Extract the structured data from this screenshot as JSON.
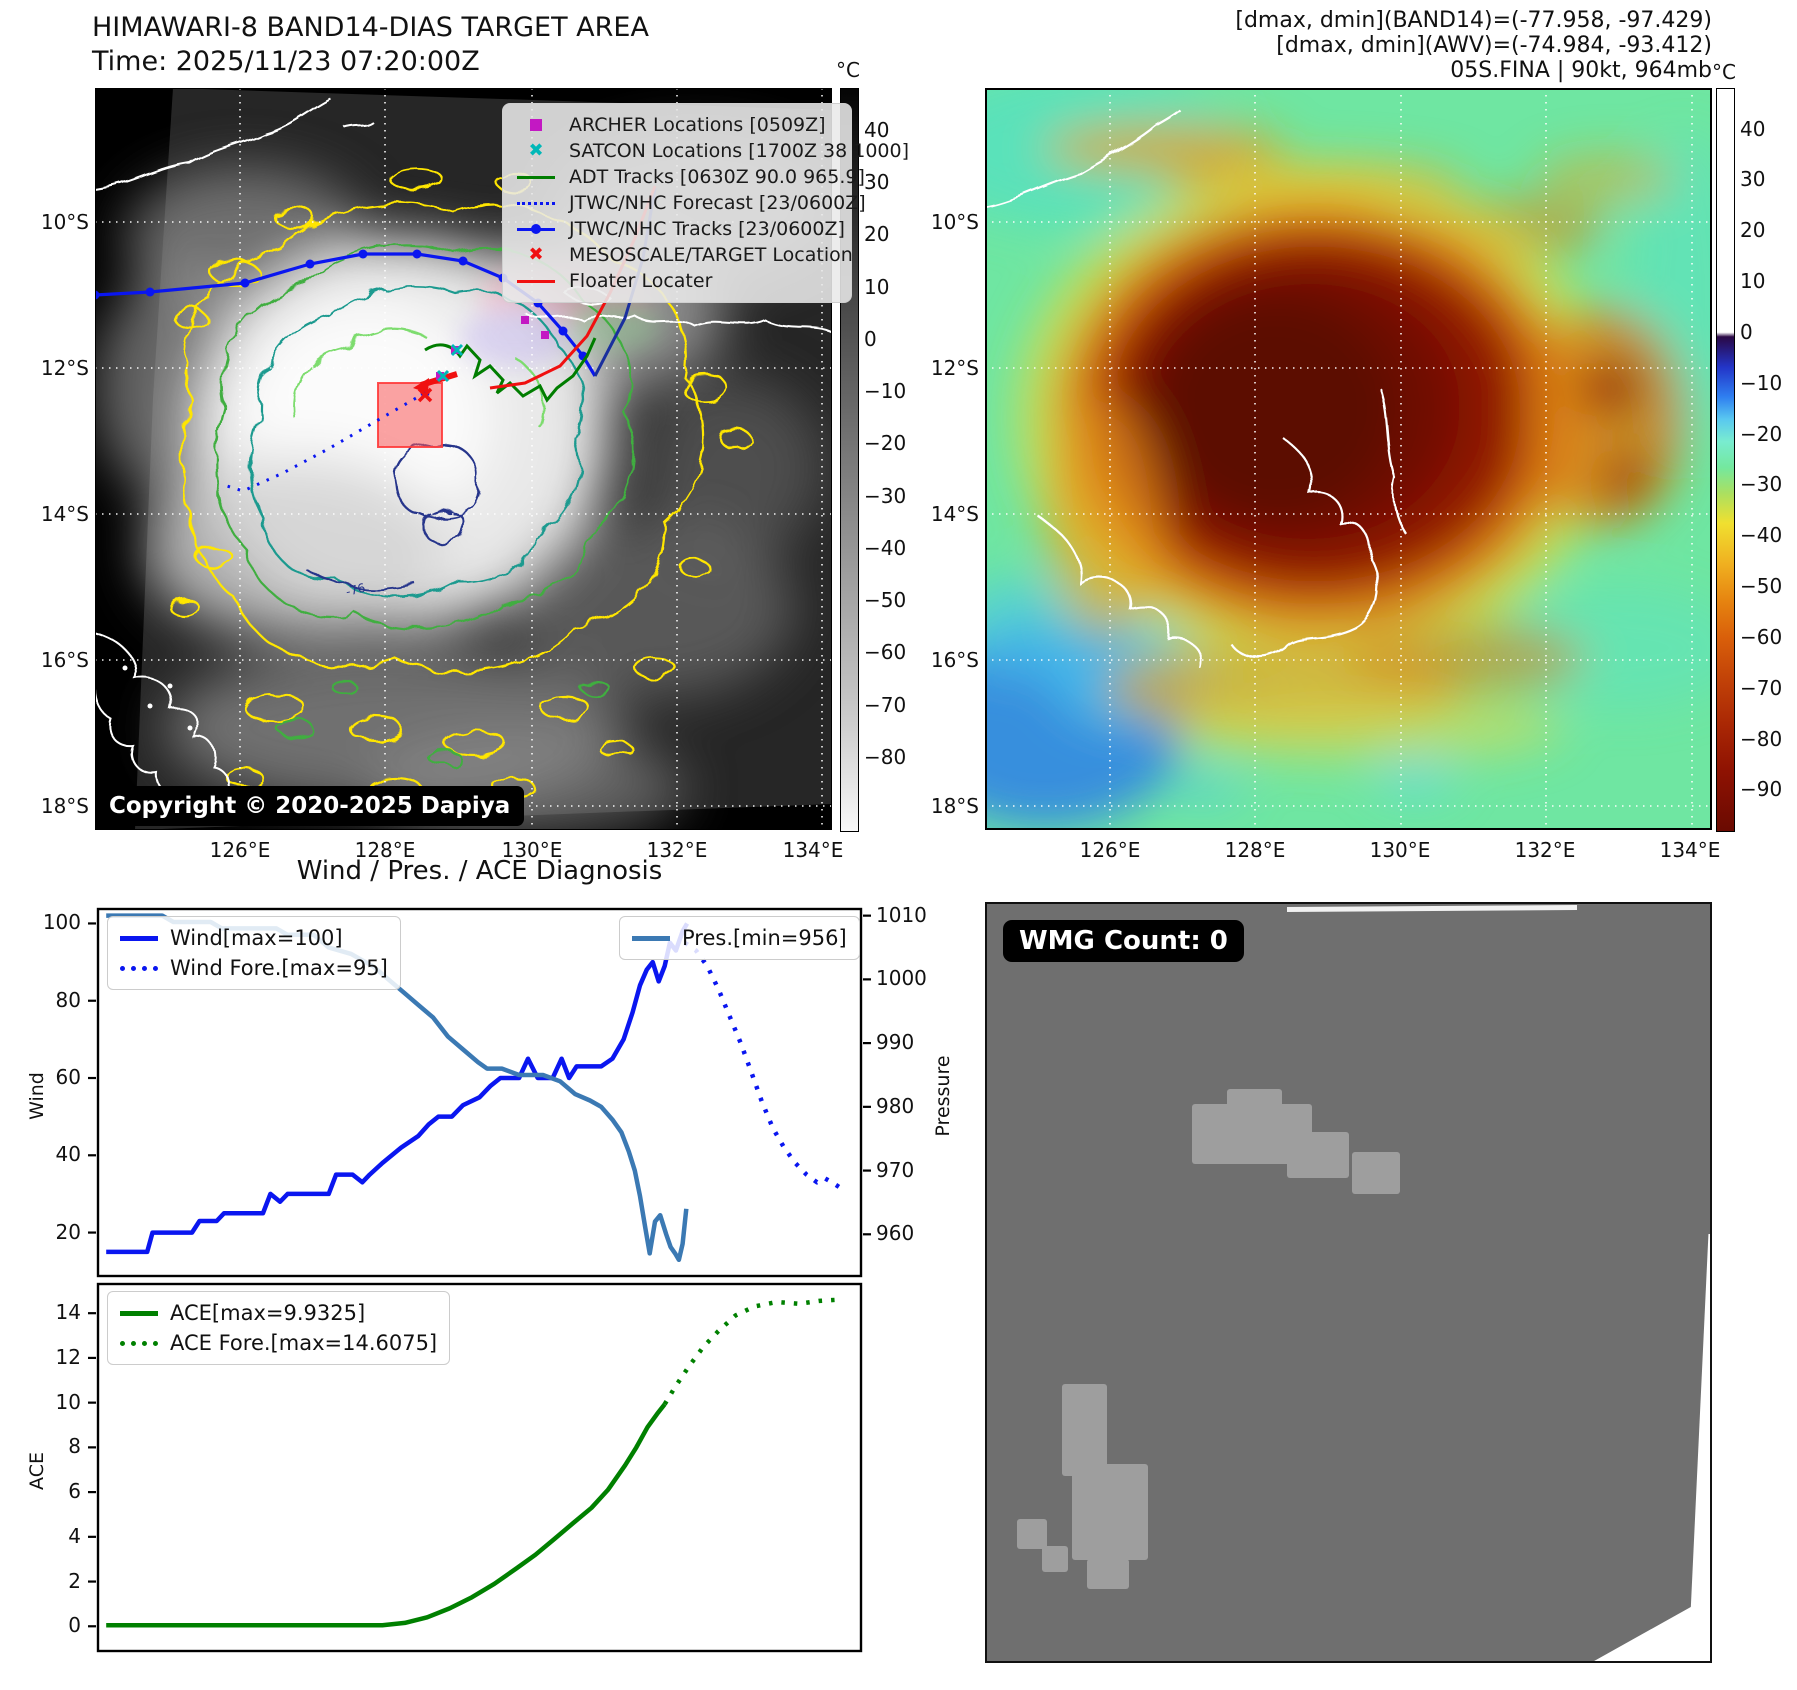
{
  "header": {
    "title": "HIMAWARI-8 BAND14-DIAS TARGET AREA",
    "time_line": "Time: 2025/11/23 07:20:00Z",
    "info_line1": "[dmax, dmin](BAND14)=(-77.958, -97.429)",
    "info_line2": "[dmax, dmin](AWV)=(-74.984, -93.412)",
    "info_line3": "05S.FINA | 90kt, 964mb"
  },
  "left_map": {
    "legend_items": [
      {
        "label": "ARCHER Locations [0509Z]",
        "marker": "square",
        "color": "#c318c3"
      },
      {
        "label": "SATCON Locations [1700Z 38 1000]",
        "marker": "x",
        "color": "#00b8b8"
      },
      {
        "label": "ADT Tracks [0630Z 90.0 965.9]",
        "marker": "line",
        "color": "#007d00"
      },
      {
        "label": "JTWC/NHC Forecast [23/0600Z]",
        "marker": "dotted-line",
        "color": "#0a16f0"
      },
      {
        "label": "JTWC/NHC Tracks [23/0600Z]",
        "marker": "line-dot",
        "color": "#0a16f0"
      },
      {
        "label": "MESOSCALE/TARGET Location",
        "marker": "x",
        "color": "#f01010"
      },
      {
        "label": "Floater Locater",
        "marker": "line",
        "color": "#f01010"
      }
    ],
    "copyright": "Copyright © 2020-2025 Dapiya",
    "contour_annotation": "-76",
    "lat_ticks": [
      "10°S",
      "12°S",
      "14°S",
      "16°S",
      "18°S"
    ],
    "lon_ticks": [
      "126°E",
      "128°E",
      "130°E",
      "132°E",
      "134°E"
    ],
    "colorbar": {
      "unit": "°C",
      "ticks": [
        "40",
        "30",
        "20",
        "10",
        "0",
        "−10",
        "−20",
        "−30",
        "−40",
        "−50",
        "−60",
        "−70",
        "−80"
      ]
    }
  },
  "right_map": {
    "lat_ticks": [
      "10°S",
      "12°S",
      "14°S",
      "16°S",
      "18°S"
    ],
    "lon_ticks": [
      "126°E",
      "128°E",
      "130°E",
      "132°E",
      "134°E"
    ],
    "colorbar": {
      "unit": "°C",
      "ticks": [
        "40",
        "30",
        "20",
        "10",
        "0",
        "−10",
        "−20",
        "−30",
        "−40",
        "−50",
        "−60",
        "−70",
        "−80",
        "−90"
      ]
    }
  },
  "wmg_panel": {
    "count_label": "WMG Count: 0"
  },
  "chart_data": [
    {
      "type": "line",
      "title": "Wind / Pres. / ACE Diagnosis",
      "ylabel_left": "Wind",
      "ylabel_right": "Pressure",
      "ylim_left": [
        8.5,
        104
      ],
      "yticks_left": [
        20,
        40,
        60,
        80,
        100
      ],
      "ylim_right": [
        953.3,
        1011.2
      ],
      "yticks_right": [
        960,
        970,
        980,
        990,
        1000,
        1010
      ],
      "x_range": [
        0,
        1
      ],
      "series": [
        {
          "name": "Wind[max=100]",
          "axis": "left",
          "style": "solid",
          "color": "#0a16f0",
          "points": [
            [
              0,
              15
            ],
            [
              0.055,
              15
            ],
            [
              0.062,
              20
            ],
            [
              0.115,
              20
            ],
            [
              0.125,
              23
            ],
            [
              0.148,
              23
            ],
            [
              0.158,
              25
            ],
            [
              0.21,
              25
            ],
            [
              0.22,
              30
            ],
            [
              0.233,
              28
            ],
            [
              0.243,
              30
            ],
            [
              0.298,
              30
            ],
            [
              0.308,
              35
            ],
            [
              0.33,
              35
            ],
            [
              0.343,
              33
            ],
            [
              0.353,
              35
            ],
            [
              0.37,
              38
            ],
            [
              0.395,
              42
            ],
            [
              0.418,
              45
            ],
            [
              0.432,
              48
            ],
            [
              0.445,
              50
            ],
            [
              0.463,
              50
            ],
            [
              0.478,
              53
            ],
            [
              0.5,
              55
            ],
            [
              0.515,
              58
            ],
            [
              0.528,
              60
            ],
            [
              0.553,
              60
            ],
            [
              0.565,
              65
            ],
            [
              0.578,
              60
            ],
            [
              0.598,
              60
            ],
            [
              0.61,
              65
            ],
            [
              0.62,
              60
            ],
            [
              0.63,
              63
            ],
            [
              0.663,
              63
            ],
            [
              0.678,
              65
            ],
            [
              0.693,
              70
            ],
            [
              0.705,
              77
            ],
            [
              0.715,
              84
            ],
            [
              0.724,
              88
            ],
            [
              0.732,
              90
            ],
            [
              0.74,
              85
            ],
            [
              0.748,
              89
            ],
            [
              0.755,
              95
            ],
            [
              0.763,
              93
            ],
            [
              0.772,
              98
            ],
            [
              0.778,
              100
            ]
          ]
        },
        {
          "name": "Wind Fore.[max=95]",
          "axis": "left",
          "style": "dotted",
          "color": "#0a16f0",
          "points": [
            [
              0.775,
              95
            ],
            [
              0.79,
              93
            ],
            [
              0.805,
              89
            ],
            [
              0.82,
              83
            ],
            [
              0.835,
              76
            ],
            [
              0.85,
              69
            ],
            [
              0.865,
              61
            ],
            [
              0.878,
              54
            ],
            [
              0.893,
              47
            ],
            [
              0.908,
              42
            ],
            [
              0.923,
              38
            ],
            [
              0.938,
              35
            ],
            [
              0.952,
              33
            ],
            [
              0.963,
              34
            ],
            [
              0.972,
              33
            ],
            [
              0.988,
              31
            ]
          ]
        },
        {
          "name": "Pres.[min=956]",
          "axis": "right",
          "style": "solid",
          "color": "#3b79b3",
          "points": [
            [
              0,
              1010
            ],
            [
              0.075,
              1010
            ],
            [
              0.09,
              1009
            ],
            [
              0.14,
              1009
            ],
            [
              0.155,
              1008
            ],
            [
              0.228,
              1008
            ],
            [
              0.243,
              1007
            ],
            [
              0.278,
              1007
            ],
            [
              0.298,
              1005
            ],
            [
              0.328,
              1004
            ],
            [
              0.343,
              1003
            ],
            [
              0.358,
              1002
            ],
            [
              0.378,
              1000
            ],
            [
              0.398,
              998
            ],
            [
              0.418,
              996
            ],
            [
              0.438,
              994
            ],
            [
              0.458,
              991
            ],
            [
              0.478,
              989
            ],
            [
              0.498,
              987
            ],
            [
              0.51,
              986
            ],
            [
              0.53,
              986
            ],
            [
              0.553,
              985
            ],
            [
              0.585,
              985
            ],
            [
              0.608,
              984
            ],
            [
              0.628,
              982
            ],
            [
              0.648,
              981
            ],
            [
              0.663,
              980
            ],
            [
              0.678,
              978
            ],
            [
              0.69,
              976
            ],
            [
              0.7,
              973
            ],
            [
              0.708,
              970
            ],
            [
              0.715,
              966
            ],
            [
              0.722,
              961
            ],
            [
              0.728,
              957
            ],
            [
              0.735,
              962
            ],
            [
              0.742,
              963
            ],
            [
              0.75,
              960
            ],
            [
              0.756,
              958
            ],
            [
              0.762,
              957
            ],
            [
              0.767,
              956
            ],
            [
              0.772,
              958.5
            ],
            [
              0.777,
              964
            ]
          ]
        }
      ]
    },
    {
      "type": "line",
      "ylabel_left": "ACE",
      "ylim_left": [
        -1.15,
        15.35
      ],
      "yticks_left": [
        0,
        2,
        4,
        6,
        8,
        10,
        12,
        14
      ],
      "x_range": [
        0,
        1
      ],
      "series": [
        {
          "name": "ACE[max=9.9325]",
          "axis": "left",
          "style": "solid",
          "color": "#008000",
          "points": [
            [
              0,
              0.05
            ],
            [
              0.37,
              0.05
            ],
            [
              0.4,
              0.15
            ],
            [
              0.43,
              0.4
            ],
            [
              0.46,
              0.8
            ],
            [
              0.49,
              1.3
            ],
            [
              0.52,
              1.9
            ],
            [
              0.55,
              2.6
            ],
            [
              0.575,
              3.2
            ],
            [
              0.6,
              3.9
            ],
            [
              0.625,
              4.6
            ],
            [
              0.65,
              5.3
            ],
            [
              0.672,
              6.1
            ],
            [
              0.695,
              7.2
            ],
            [
              0.71,
              8
            ],
            [
              0.725,
              8.9
            ],
            [
              0.738,
              9.5
            ],
            [
              0.748,
              9.93
            ]
          ]
        },
        {
          "name": "ACE Fore.[max=14.6075]",
          "axis": "left",
          "style": "dotted",
          "color": "#008000",
          "points": [
            [
              0.748,
              9.93
            ],
            [
              0.762,
              10.7
            ],
            [
              0.78,
              11.6
            ],
            [
              0.8,
              12.5
            ],
            [
              0.82,
              13.2
            ],
            [
              0.843,
              13.9
            ],
            [
              0.868,
              14.3
            ],
            [
              0.898,
              14.5
            ],
            [
              0.928,
              14.42
            ],
            [
              0.955,
              14.55
            ],
            [
              0.985,
              14.61
            ]
          ]
        }
      ]
    }
  ]
}
